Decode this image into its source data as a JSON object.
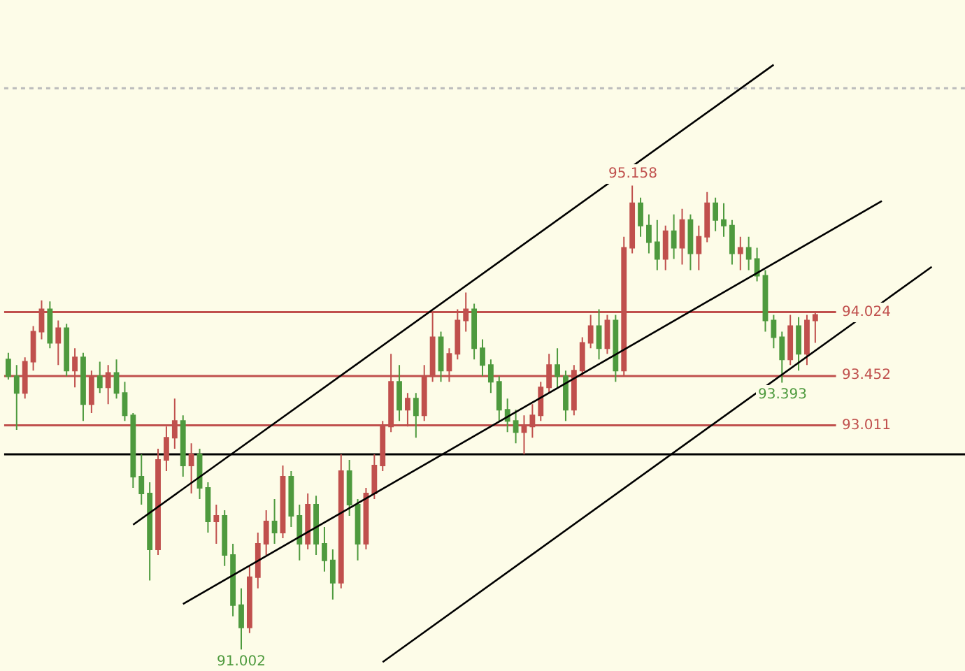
{
  "chart_data": {
    "type": "candlestick",
    "categories": [
      null,
      null,
      null,
      null,
      null,
      null,
      null,
      null,
      null,
      null,
      null,
      null,
      null,
      null,
      null,
      null,
      null,
      null,
      null,
      null,
      null,
      null,
      null,
      null,
      null,
      null,
      null,
      null,
      null,
      null,
      null,
      null,
      null,
      null,
      null,
      null,
      null,
      null,
      null,
      null,
      null,
      null,
      null,
      null,
      null,
      null,
      null,
      null,
      null,
      null,
      null,
      null,
      null,
      null,
      null,
      null,
      null,
      null,
      null,
      null,
      null,
      null,
      null,
      null,
      null,
      null,
      null,
      null,
      null,
      null,
      null,
      null,
      null,
      null,
      null,
      null,
      null,
      null,
      null,
      null,
      null,
      null,
      null,
      null,
      null,
      null,
      null,
      null,
      null,
      null,
      null,
      null,
      null,
      null,
      null,
      null,
      null,
      null,
      null,
      null,
      null,
      null,
      null,
      null,
      null,
      null,
      null,
      null,
      null,
      null,
      null,
      null
    ],
    "ohlc": [
      [
        93.6,
        93.66,
        93.42,
        93.45
      ],
      [
        93.45,
        93.55,
        92.97,
        93.3
      ],
      [
        93.3,
        93.62,
        93.25,
        93.58
      ],
      [
        93.58,
        93.9,
        93.5,
        93.85
      ],
      [
        93.85,
        94.13,
        93.78,
        94.05
      ],
      [
        94.05,
        94.12,
        93.7,
        93.75
      ],
      [
        93.75,
        93.95,
        93.55,
        93.88
      ],
      [
        93.88,
        93.92,
        93.45,
        93.5
      ],
      [
        93.5,
        93.7,
        93.35,
        93.62
      ],
      [
        93.62,
        93.66,
        93.05,
        93.2
      ],
      [
        93.2,
        93.5,
        93.12,
        93.45
      ],
      [
        93.45,
        93.58,
        93.3,
        93.35
      ],
      [
        93.35,
        93.55,
        93.2,
        93.48
      ],
      [
        93.48,
        93.6,
        93.25,
        93.3
      ],
      [
        93.3,
        93.4,
        93.05,
        93.1
      ],
      [
        93.1,
        93.12,
        92.45,
        92.55
      ],
      [
        92.55,
        92.75,
        92.3,
        92.4
      ],
      [
        92.4,
        92.5,
        91.62,
        91.9
      ],
      [
        91.9,
        92.8,
        91.85,
        92.7
      ],
      [
        92.7,
        93.0,
        92.6,
        92.9
      ],
      [
        92.9,
        93.25,
        92.8,
        93.05
      ],
      [
        93.05,
        93.1,
        92.55,
        92.65
      ],
      [
        92.65,
        92.85,
        92.4,
        92.75
      ],
      [
        92.75,
        92.8,
        92.35,
        92.45
      ],
      [
        92.45,
        92.5,
        92.05,
        92.15
      ],
      [
        92.15,
        92.3,
        91.95,
        92.2
      ],
      [
        92.2,
        92.25,
        91.75,
        91.85
      ],
      [
        91.85,
        91.95,
        91.3,
        91.4
      ],
      [
        91.4,
        91.55,
        91.002,
        91.2
      ],
      [
        91.2,
        91.75,
        91.15,
        91.65
      ],
      [
        91.65,
        92.05,
        91.55,
        91.95
      ],
      [
        91.95,
        92.25,
        91.85,
        92.15
      ],
      [
        92.15,
        92.35,
        91.95,
        92.05
      ],
      [
        92.05,
        92.65,
        92.0,
        92.55
      ],
      [
        92.55,
        92.6,
        92.1,
        92.2
      ],
      [
        92.2,
        92.3,
        91.8,
        91.95
      ],
      [
        91.95,
        92.4,
        91.9,
        92.3
      ],
      [
        92.3,
        92.38,
        91.85,
        91.95
      ],
      [
        91.95,
        92.1,
        91.7,
        91.8
      ],
      [
        91.8,
        91.9,
        91.45,
        91.6
      ],
      [
        91.6,
        92.75,
        91.55,
        92.6
      ],
      [
        92.6,
        92.7,
        92.2,
        92.3
      ],
      [
        92.3,
        92.35,
        91.8,
        91.95
      ],
      [
        91.95,
        92.45,
        91.9,
        92.4
      ],
      [
        92.4,
        92.75,
        92.35,
        92.65
      ],
      [
        92.65,
        93.05,
        92.6,
        93.0
      ],
      [
        93.0,
        93.65,
        92.95,
        93.4
      ],
      [
        93.4,
        93.55,
        93.05,
        93.15
      ],
      [
        93.15,
        93.3,
        93.0,
        93.25
      ],
      [
        93.25,
        93.3,
        92.9,
        93.1
      ],
      [
        93.1,
        93.55,
        93.05,
        93.45
      ],
      [
        93.45,
        94.02,
        93.4,
        93.8
      ],
      [
        93.8,
        93.85,
        93.4,
        93.5
      ],
      [
        93.5,
        93.7,
        93.4,
        93.65
      ],
      [
        93.65,
        94.05,
        93.6,
        93.95
      ],
      [
        93.95,
        94.2,
        93.85,
        94.05
      ],
      [
        94.05,
        94.1,
        93.6,
        93.7
      ],
      [
        93.7,
        93.78,
        93.45,
        93.55
      ],
      [
        93.55,
        93.6,
        93.3,
        93.4
      ],
      [
        93.4,
        93.45,
        93.05,
        93.15
      ],
      [
        93.15,
        93.25,
        92.95,
        93.05
      ],
      [
        93.05,
        93.15,
        92.85,
        92.95
      ],
      [
        92.95,
        93.1,
        92.75,
        93.0
      ],
      [
        93.0,
        93.2,
        92.9,
        93.1
      ],
      [
        93.1,
        93.4,
        93.05,
        93.35
      ],
      [
        93.35,
        93.65,
        93.3,
        93.55
      ],
      [
        93.55,
        93.7,
        93.35,
        93.45
      ],
      [
        93.45,
        93.5,
        93.05,
        93.15
      ],
      [
        93.15,
        93.55,
        93.1,
        93.5
      ],
      [
        93.5,
        93.8,
        93.45,
        93.75
      ],
      [
        93.75,
        94.0,
        93.7,
        93.9
      ],
      [
        93.9,
        94.05,
        93.6,
        93.7
      ],
      [
        93.7,
        94.0,
        93.65,
        93.95
      ],
      [
        93.95,
        94.0,
        93.4,
        93.5
      ],
      [
        93.5,
        94.7,
        93.45,
        94.6
      ],
      [
        94.6,
        95.158,
        94.55,
        95.0
      ],
      [
        95.0,
        95.05,
        94.7,
        94.8
      ],
      [
        94.8,
        94.9,
        94.55,
        94.65
      ],
      [
        94.65,
        94.85,
        94.4,
        94.5
      ],
      [
        94.5,
        94.8,
        94.4,
        94.75
      ],
      [
        94.75,
        94.9,
        94.5,
        94.6
      ],
      [
        94.6,
        94.95,
        94.45,
        94.85
      ],
      [
        94.85,
        94.9,
        94.4,
        94.55
      ],
      [
        94.55,
        94.8,
        94.4,
        94.7
      ],
      [
        94.7,
        95.1,
        94.65,
        95.0
      ],
      [
        95.0,
        95.05,
        94.75,
        94.85
      ],
      [
        94.85,
        95.0,
        94.7,
        94.8
      ],
      [
        94.8,
        94.85,
        94.45,
        94.55
      ],
      [
        94.55,
        94.7,
        94.4,
        94.6
      ],
      [
        94.6,
        94.7,
        94.4,
        94.5
      ],
      [
        94.5,
        94.6,
        94.3,
        94.35
      ],
      [
        94.35,
        94.4,
        93.85,
        93.95
      ],
      [
        93.95,
        94.0,
        93.7,
        93.8
      ],
      [
        93.8,
        93.85,
        93.393,
        93.6
      ],
      [
        93.6,
        94.0,
        93.55,
        93.9
      ],
      [
        93.9,
        93.98,
        93.5,
        93.65
      ],
      [
        93.65,
        94.0,
        93.55,
        93.95
      ],
      [
        93.95,
        94.02,
        93.75,
        94.0
      ],
      null,
      null,
      null,
      null,
      null,
      null,
      null,
      null,
      null,
      null,
      null,
      null,
      null,
      null
    ],
    "colors": [
      "#4e9a3e",
      "#4e9a3e",
      "#c0504d",
      "#c0504d",
      "#c0504d",
      "#4e9a3e",
      "#c0504d",
      "#4e9a3e",
      "#c0504d",
      "#4e9a3e",
      "#c0504d",
      "#4e9a3e",
      "#c0504d",
      "#4e9a3e",
      "#4e9a3e",
      "#4e9a3e",
      "#4e9a3e",
      "#4e9a3e",
      "#c0504d",
      "#c0504d",
      "#c0504d",
      "#4e9a3e",
      "#c0504d",
      "#4e9a3e",
      "#4e9a3e",
      "#c0504d",
      "#4e9a3e",
      "#4e9a3e",
      "#4e9a3e",
      "#c0504d",
      "#c0504d",
      "#c0504d",
      "#4e9a3e",
      "#c0504d",
      "#4e9a3e",
      "#4e9a3e",
      "#c0504d",
      "#4e9a3e",
      "#4e9a3e",
      "#4e9a3e",
      "#c0504d",
      "#4e9a3e",
      "#4e9a3e",
      "#c0504d",
      "#c0504d",
      "#c0504d",
      "#c0504d",
      "#4e9a3e",
      "#c0504d",
      "#4e9a3e",
      "#c0504d",
      "#c0504d",
      "#4e9a3e",
      "#c0504d",
      "#c0504d",
      "#c0504d",
      "#4e9a3e",
      "#4e9a3e",
      "#4e9a3e",
      "#4e9a3e",
      "#4e9a3e",
      "#4e9a3e",
      "#c0504d",
      "#c0504d",
      "#c0504d",
      "#c0504d",
      "#4e9a3e",
      "#4e9a3e",
      "#c0504d",
      "#c0504d",
      "#c0504d",
      "#4e9a3e",
      "#c0504d",
      "#4e9a3e",
      "#c0504d",
      "#c0504d",
      "#4e9a3e",
      "#4e9a3e",
      "#4e9a3e",
      "#c0504d",
      "#4e9a3e",
      "#c0504d",
      "#4e9a3e",
      "#c0504d",
      "#c0504d",
      "#4e9a3e",
      "#4e9a3e",
      "#4e9a3e",
      "#c0504d",
      "#4e9a3e",
      "#4e9a3e",
      "#4e9a3e",
      "#4e9a3e",
      "#4e9a3e",
      "#c0504d",
      "#4e9a3e",
      "#c0504d",
      "#c0504d",
      null,
      null,
      null,
      null,
      null,
      null,
      null,
      null,
      null,
      null,
      null,
      null,
      null,
      null
    ],
    "series": [
      {
        "type": "line",
        "color": "#000000",
        "values": [
          null,
          null,
          null,
          null,
          null,
          null,
          null,
          null,
          null,
          null,
          null,
          null,
          null,
          null,
          null,
          92.12,
          null,
          null,
          null,
          null,
          null,
          null,
          null,
          null,
          null,
          null,
          null,
          null,
          null,
          null,
          null,
          null,
          null,
          null,
          null,
          null,
          null,
          null,
          null,
          null,
          null,
          null,
          null,
          null,
          null,
          null,
          null,
          null,
          null,
          null,
          null,
          null,
          null,
          null,
          null,
          null,
          null,
          null,
          null,
          null,
          null,
          null,
          null,
          null,
          null,
          null,
          null,
          null,
          null,
          null,
          null,
          null,
          null,
          null,
          null,
          null,
          null,
          null,
          null,
          null,
          null,
          null,
          null,
          null,
          null,
          null,
          null,
          null,
          null,
          null,
          null,
          null,
          96.24,
          null,
          null,
          null,
          null,
          null,
          null,
          null,
          null,
          null,
          null,
          null,
          null,
          null,
          null,
          null,
          null,
          null,
          null,
          null
        ]
      },
      {
        "type": "line",
        "color": "#000000",
        "values": [
          null,
          null,
          null,
          null,
          null,
          null,
          null,
          null,
          null,
          null,
          null,
          null,
          null,
          null,
          null,
          null,
          null,
          null,
          null,
          null,
          null,
          91.41,
          null,
          null,
          null,
          null,
          null,
          null,
          null,
          null,
          null,
          null,
          null,
          null,
          null,
          null,
          null,
          null,
          null,
          null,
          null,
          null,
          null,
          null,
          null,
          null,
          null,
          null,
          null,
          null,
          null,
          null,
          null,
          null,
          null,
          null,
          null,
          null,
          null,
          null,
          null,
          null,
          null,
          null,
          null,
          null,
          null,
          null,
          null,
          null,
          null,
          null,
          null,
          null,
          null,
          null,
          null,
          null,
          null,
          null,
          null,
          null,
          null,
          null,
          null,
          null,
          null,
          null,
          null,
          null,
          null,
          null,
          null,
          null,
          null,
          null,
          null,
          null,
          null,
          null,
          null,
          null,
          null,
          null,
          null,
          95.02,
          null,
          null,
          null,
          null,
          null,
          null
        ]
      },
      {
        "type": "line",
        "color": "#000000",
        "values": [
          null,
          null,
          null,
          null,
          null,
          null,
          null,
          null,
          null,
          null,
          null,
          null,
          null,
          null,
          null,
          null,
          null,
          null,
          null,
          null,
          null,
          null,
          null,
          null,
          null,
          null,
          null,
          null,
          null,
          null,
          null,
          null,
          null,
          null,
          null,
          null,
          null,
          null,
          null,
          null,
          null,
          null,
          null,
          null,
          null,
          90.89,
          null,
          null,
          null,
          null,
          null,
          null,
          null,
          null,
          null,
          null,
          null,
          null,
          null,
          null,
          null,
          null,
          null,
          null,
          null,
          null,
          null,
          null,
          null,
          null,
          null,
          null,
          null,
          null,
          null,
          null,
          null,
          null,
          null,
          null,
          null,
          null,
          null,
          null,
          null,
          null,
          null,
          null,
          null,
          null,
          null,
          null,
          null,
          null,
          null,
          null,
          null,
          null,
          null,
          null,
          null,
          null,
          null,
          null,
          null,
          null,
          null,
          null,
          null,
          null,
          null,
          94.43
        ]
      }
    ],
    "ylim": [
      90.81,
      96.82
    ],
    "ref_lines": [
      {
        "axis": "y",
        "value": 93.011,
        "label": "93.011",
        "color": "#c0504d",
        "line_style": "solid"
      },
      {
        "axis": "y",
        "value": 94.024,
        "label": "94.024",
        "color": "#c0504d",
        "line_style": "solid"
      },
      {
        "axis": "y",
        "value": 93.452,
        "label": "93.452",
        "color": "#c0504d",
        "line_style": "solid"
      },
      {
        "axis": "y",
        "value": 92.75,
        "color": "#000000",
        "line_style": "solid"
      },
      {
        "axis": "y",
        "value": 96.03,
        "color": "#bbbbbb",
        "line_style": "dotted"
      }
    ],
    "annotations": [
      {
        "text": "95.158",
        "y": 95.158
      },
      {
        "text": "91.002",
        "y": 91.002
      },
      {
        "text": "93.393",
        "y": 93.393
      }
    ]
  }
}
